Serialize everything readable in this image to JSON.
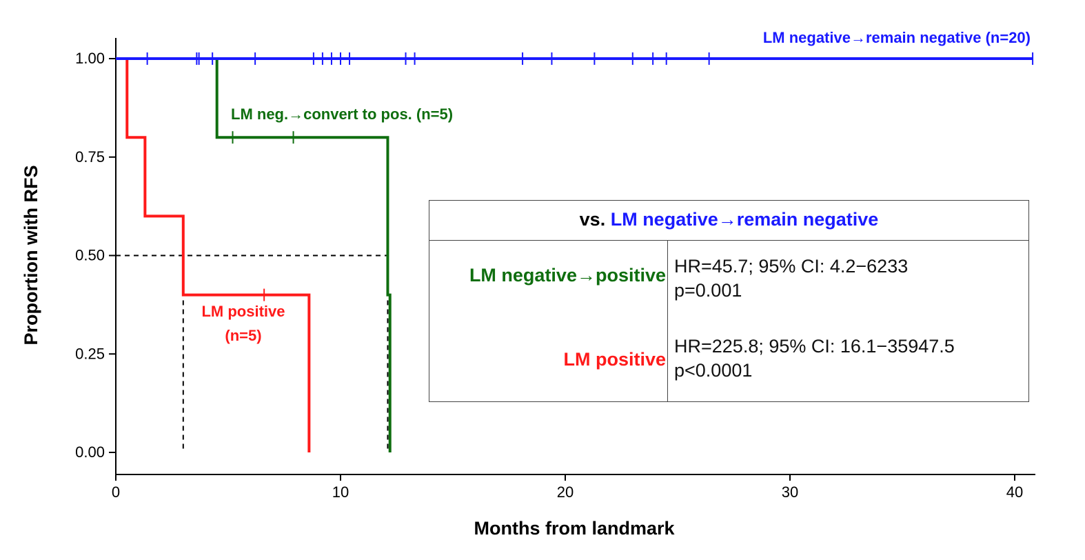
{
  "chart_data": {
    "type": "line",
    "subtype": "kaplan-meier step",
    "xlabel": "Months from landmark",
    "ylabel": "Proportion with RFS",
    "xlim": [
      0,
      41
    ],
    "ylim": [
      0,
      1
    ],
    "xticks": [
      0,
      10,
      20,
      30,
      40
    ],
    "yticks": [
      0.0,
      0.25,
      0.5,
      0.75,
      1.0
    ],
    "ytick_labels": [
      "0.00",
      "0.25",
      "0.50",
      "0.75",
      "1.00"
    ],
    "median_line_y": 0.5,
    "series": [
      {
        "name": "LM negative→remain negative (n=20)",
        "color": "#1a1aff",
        "steps": [
          [
            0,
            1.0
          ],
          [
            40.8,
            1.0
          ]
        ],
        "censor_times": [
          1.4,
          3.6,
          3.7,
          4.3,
          6.2,
          8.8,
          9.2,
          9.6,
          10.0,
          10.4,
          12.9,
          13.3,
          18.1,
          19.4,
          21.3,
          23.0,
          23.9,
          24.5,
          26.4,
          40.8
        ],
        "censor_y": [
          1,
          1,
          1,
          1,
          1,
          1,
          1,
          1,
          1,
          1,
          1,
          1,
          1,
          1,
          1,
          1,
          1,
          1,
          1,
          1
        ]
      },
      {
        "name": "LM neg.→convert to pos. (n=5)",
        "color": "#0f6e0f",
        "steps": [
          [
            0,
            1.0
          ],
          [
            4.5,
            1.0
          ],
          [
            4.5,
            0.8
          ],
          [
            12.1,
            0.8
          ],
          [
            12.1,
            0.4
          ],
          [
            12.2,
            0.4
          ],
          [
            12.2,
            0.0
          ]
        ],
        "censor_times": [
          5.2,
          7.9
        ],
        "censor_y": [
          0.8,
          0.8
        ],
        "median_time": 12.1
      },
      {
        "name": "LM positive (n=5)",
        "color": "#ff1a1a",
        "steps": [
          [
            0,
            1.0
          ],
          [
            0.5,
            1.0
          ],
          [
            0.5,
            0.8
          ],
          [
            1.3,
            0.8
          ],
          [
            1.3,
            0.6
          ],
          [
            3.0,
            0.6
          ],
          [
            3.0,
            0.4
          ],
          [
            8.6,
            0.4
          ],
          [
            8.6,
            0.0
          ]
        ],
        "censor_times": [
          6.6
        ],
        "censor_y": [
          0.4
        ],
        "median_time": 3.0
      }
    ],
    "labels": {
      "blue": "LM negative→remain negative (n=20)",
      "green": "LM neg.→convert to pos. (n=5)",
      "red_line1": "LM positive",
      "red_line2": "(n=5)"
    }
  },
  "hr_table": {
    "header_prefix": "vs. ",
    "header_ref": "LM negative→remain negative",
    "rows": [
      {
        "label": "LM negative→positive",
        "hr_text": "HR=45.7;  95% CI: 4.2−6233",
        "p_text": "p=0.001",
        "color": "#0f6e0f"
      },
      {
        "label": "LM positive",
        "hr_text": "HR=225.8; 95% CI: 16.1−35947.5",
        "p_text": "p<0.0001",
        "color": "#ff1a1a"
      }
    ]
  }
}
